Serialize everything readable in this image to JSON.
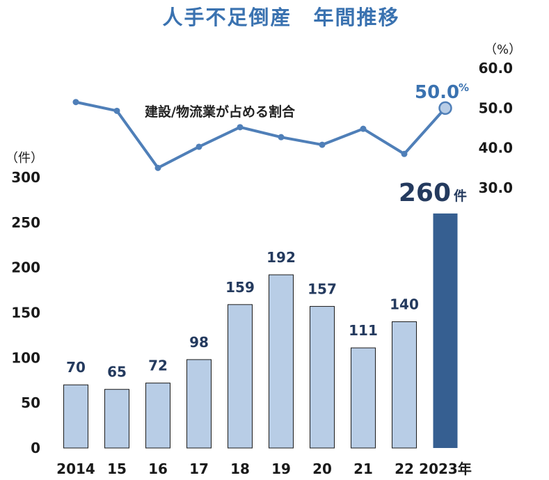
{
  "chart_data": [
    {
      "type": "bar",
      "title": "人手不足倒産　年間推移",
      "categories": [
        "2014",
        "15",
        "16",
        "17",
        "18",
        "19",
        "20",
        "21",
        "22",
        "2023年"
      ],
      "values": [
        70,
        65,
        72,
        98,
        159,
        192,
        157,
        111,
        140,
        260
      ],
      "ylabel": "（件）",
      "ylim": [
        0,
        300
      ],
      "yticks": [
        0,
        50,
        100,
        150,
        200,
        250,
        300
      ],
      "highlight": {
        "index": 9,
        "value_text": "260",
        "unit": "件"
      },
      "colors": {
        "bar": "#b8cde6",
        "highlight": "#365f91",
        "bar_border": "#1a1a1a"
      }
    },
    {
      "type": "line",
      "series": [
        {
          "name": "建設/物流業が占める割合",
          "values": [
            51.5,
            49.3,
            35.0,
            40.3,
            45.2,
            42.7,
            40.8,
            44.8,
            38.5,
            50.0
          ]
        }
      ],
      "ylabel": "（%）",
      "ylim": [
        30,
        60
      ],
      "yticks": [
        "30.0",
        "40.0",
        "50.0",
        "60.0"
      ],
      "highlight": {
        "index": 9,
        "value_text": "50.0",
        "unit": "%"
      },
      "colors": {
        "line": "#4f7fb8",
        "marker_fill": "#b8cde6",
        "marker_border": "#4f7fb8"
      }
    }
  ]
}
